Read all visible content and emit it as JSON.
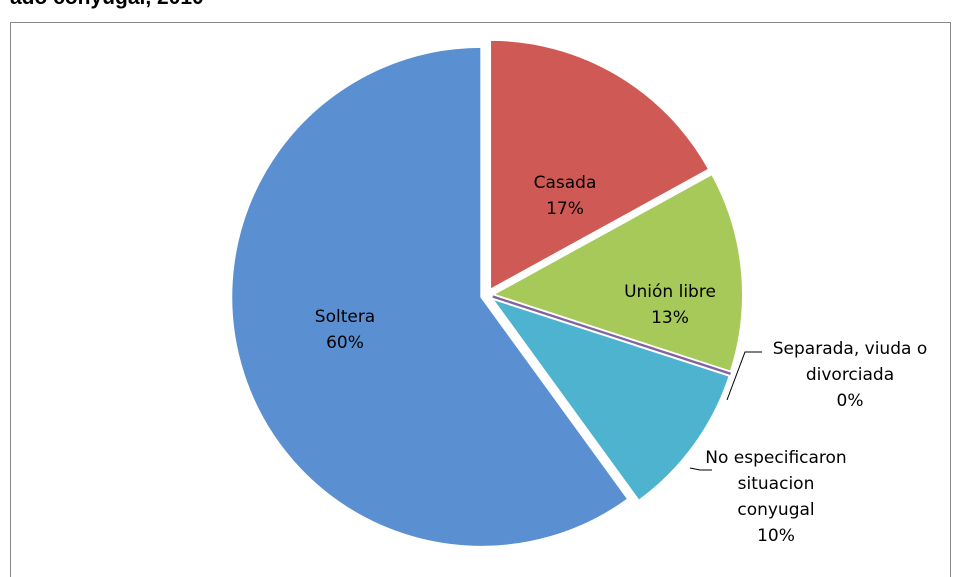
{
  "chart_data": {
    "type": "pie",
    "title": "ado conyugal, 2010",
    "categories": [
      "Casada",
      "Unión libre",
      "Separada, viuda o divorciada",
      "No especificaron situacion conyugal",
      "Soltera"
    ],
    "values": [
      17,
      13,
      0,
      10,
      60
    ],
    "value_labels": [
      "17%",
      "13%",
      "0%",
      "10%",
      "60%"
    ],
    "colors": [
      "#cf5955",
      "#a6c95a",
      "#8064a2",
      "#4eb3cf",
      "#5a8fd2"
    ]
  }
}
